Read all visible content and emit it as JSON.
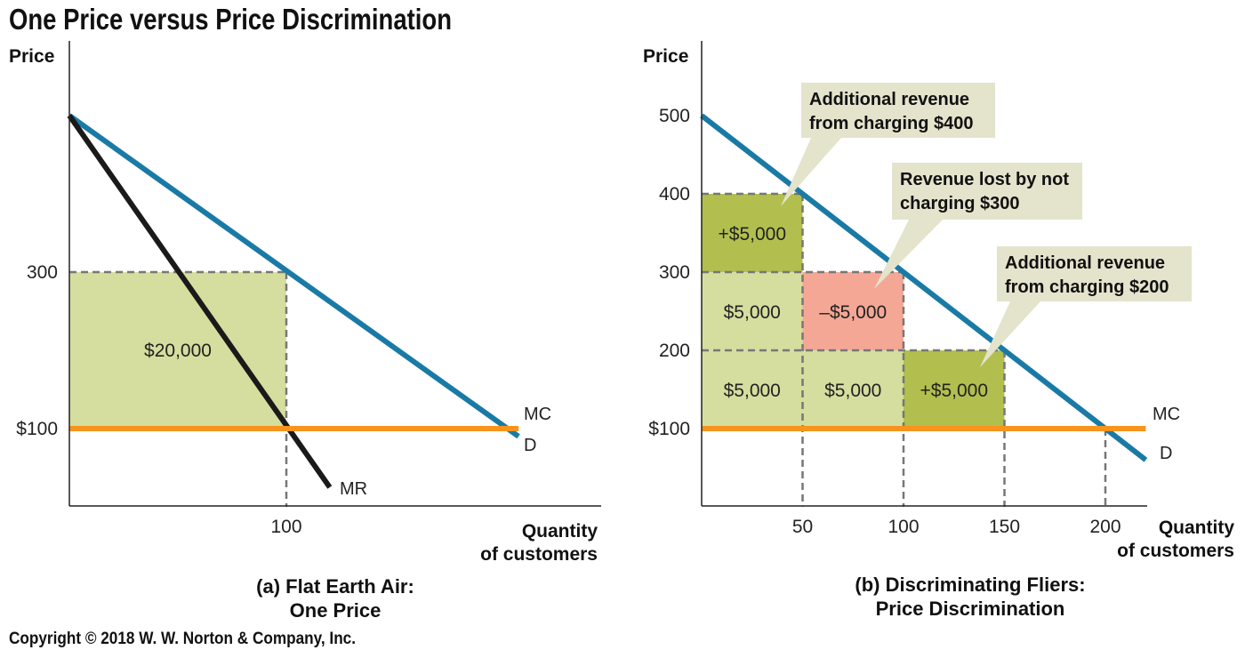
{
  "title": "One Price versus Price Discrimination",
  "copyright": "Copyright © 2018 W. W. Norton & Company, Inc.",
  "colors": {
    "demand": "#1a7aa6",
    "mr": "#1a1a1a",
    "mc": "#f7941d",
    "light_green": "#d5de9e",
    "dark_green": "#b2bf4f",
    "salmon": "#f5a796",
    "callout_bg": "#e4e3cc",
    "grid_dash": "#777777"
  },
  "chart_data": [
    {
      "type": "line",
      "panel": "a",
      "caption": [
        "(a) Flat Earth Air:",
        "One Price"
      ],
      "ylabel": "Price",
      "xlabel": [
        "Quantity",
        "of customers"
      ],
      "xlim": [
        0,
        245
      ],
      "ylim": [
        0,
        500
      ],
      "x_ticks": [
        {
          "value": 100,
          "label": "100"
        }
      ],
      "y_ticks": [
        {
          "value": 300,
          "label": "300"
        },
        {
          "value": 100,
          "label": "$100"
        }
      ],
      "series": [
        {
          "name": "D",
          "points": [
            [
              0,
              500
            ],
            [
              207,
              90
            ]
          ]
        },
        {
          "name": "MR",
          "points": [
            [
              0,
              500
            ],
            [
              120,
              25
            ]
          ]
        },
        {
          "name": "MC",
          "points": [
            [
              0,
              100
            ],
            [
              207,
              100
            ]
          ]
        }
      ],
      "areas": [
        {
          "x": [
            0,
            100
          ],
          "y": [
            100,
            300
          ],
          "label": "$20,000",
          "fill": "light_green"
        }
      ],
      "dashed_guides": [
        {
          "from": [
            0,
            300
          ],
          "to": [
            100,
            300
          ]
        },
        {
          "from": [
            100,
            300
          ],
          "to": [
            100,
            0
          ]
        }
      ]
    },
    {
      "type": "line",
      "panel": "b",
      "caption": [
        "(b) Discriminating Fliers:",
        "Price Discrimination"
      ],
      "ylabel": "Price",
      "xlabel": [
        "Quantity",
        "of customers"
      ],
      "xlim": [
        0,
        220
      ],
      "ylim": [
        0,
        500
      ],
      "x_ticks": [
        {
          "value": 50,
          "label": "50"
        },
        {
          "value": 100,
          "label": "100"
        },
        {
          "value": 150,
          "label": "150"
        },
        {
          "value": 200,
          "label": "200"
        }
      ],
      "y_ticks": [
        {
          "value": 500,
          "label": "500"
        },
        {
          "value": 400,
          "label": "400"
        },
        {
          "value": 300,
          "label": "300"
        },
        {
          "value": 200,
          "label": "200"
        },
        {
          "value": 100,
          "label": "$100"
        }
      ],
      "series": [
        {
          "name": "D",
          "points": [
            [
              0,
              500
            ],
            [
              220,
              60
            ]
          ]
        },
        {
          "name": "MC",
          "points": [
            [
              0,
              100
            ],
            [
              220,
              100
            ]
          ]
        }
      ],
      "areas": [
        {
          "x": [
            0,
            50
          ],
          "y": [
            300,
            400
          ],
          "label": "+$5,000",
          "fill": "dark_green"
        },
        {
          "x": [
            0,
            50
          ],
          "y": [
            200,
            300
          ],
          "label": "$5,000",
          "fill": "light_green"
        },
        {
          "x": [
            50,
            100
          ],
          "y": [
            200,
            300
          ],
          "label": "–$5,000",
          "fill": "salmon"
        },
        {
          "x": [
            0,
            50
          ],
          "y": [
            100,
            200
          ],
          "label": "$5,000",
          "fill": "light_green"
        },
        {
          "x": [
            50,
            100
          ],
          "y": [
            100,
            200
          ],
          "label": "$5,000",
          "fill": "light_green"
        },
        {
          "x": [
            100,
            150
          ],
          "y": [
            100,
            200
          ],
          "label": "+$5,000",
          "fill": "dark_green"
        }
      ],
      "dashed_guides": [
        {
          "from": [
            0,
            400
          ],
          "to": [
            50,
            400
          ]
        },
        {
          "from": [
            0,
            300
          ],
          "to": [
            100,
            300
          ]
        },
        {
          "from": [
            0,
            200
          ],
          "to": [
            150,
            200
          ]
        },
        {
          "from": [
            50,
            400
          ],
          "to": [
            50,
            0
          ]
        },
        {
          "from": [
            100,
            300
          ],
          "to": [
            100,
            0
          ]
        },
        {
          "from": [
            150,
            200
          ],
          "to": [
            150,
            0
          ]
        },
        {
          "from": [
            200,
            100
          ],
          "to": [
            200,
            0
          ]
        }
      ],
      "annotations": [
        {
          "lines": [
            "Additional revenue",
            "from charging $400"
          ],
          "points_to": [
            40,
            390
          ]
        },
        {
          "lines": [
            "Revenue lost by not",
            "charging $300"
          ],
          "points_to": [
            87,
            290
          ]
        },
        {
          "lines": [
            "Additional revenue",
            "from charging $200"
          ],
          "points_to": [
            145,
            190
          ]
        }
      ]
    }
  ]
}
